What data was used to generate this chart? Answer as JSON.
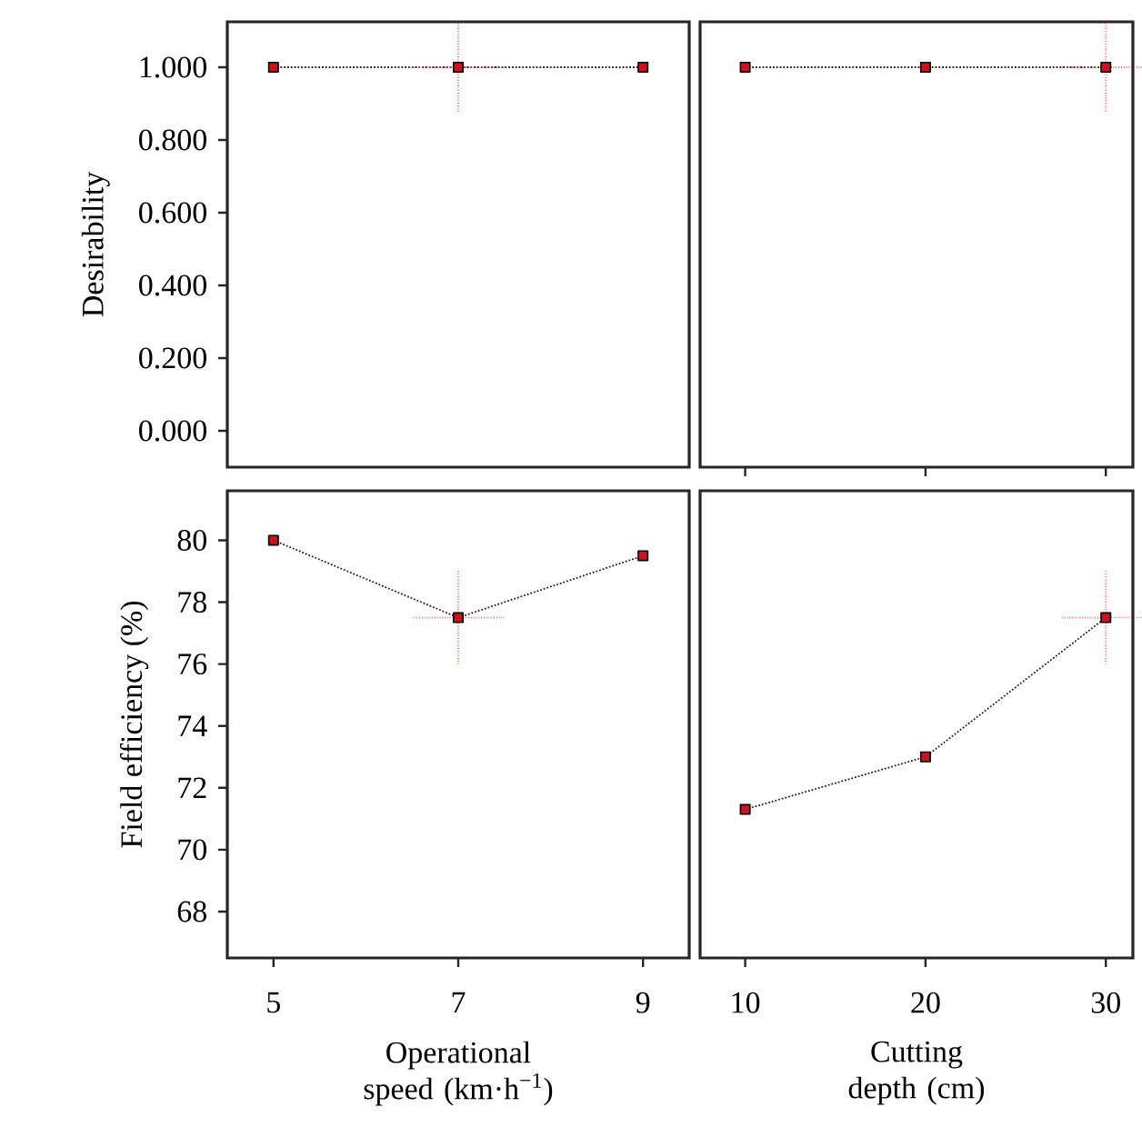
{
  "chart_data": [
    {
      "type": "line",
      "ylabel": "Desirability",
      "xlim": [
        4.5,
        9.5
      ],
      "ylim": [
        -0.1,
        1.125
      ],
      "yticks": [
        {
          "value": 0,
          "label": "0.000"
        },
        {
          "value": 0.2,
          "label": "0.200"
        },
        {
          "value": 0.4,
          "label": "0.400"
        },
        {
          "value": 0.6,
          "label": "0.600"
        },
        {
          "value": 0.8,
          "label": "0.800"
        },
        {
          "value": 1,
          "label": "1.000"
        }
      ],
      "tick_labels": "y",
      "marker": "square",
      "line_style": "dotted",
      "series": [
        {
          "color": "#222222",
          "x": [
            5,
            7,
            9
          ],
          "values": [
            1,
            1,
            1
          ],
          "errors": [
            null,
            0.125,
            null
          ],
          "xerrors": [
            null,
            0.5,
            null
          ]
        }
      ]
    },
    {
      "type": "line",
      "xlim": [
        7.5,
        31.5
      ],
      "xticks": [
        10,
        20,
        30
      ],
      "ylim": [
        -0.1,
        1.125
      ],
      "tick_labels": false,
      "marker": "square",
      "line_style": "dotted",
      "series": [
        {
          "color": "#222222",
          "x": [
            10,
            20,
            30
          ],
          "values": [
            1,
            1,
            1
          ],
          "errors": [
            null,
            null,
            0.125
          ],
          "xerrors": [
            null,
            null,
            2.5
          ]
        }
      ]
    },
    {
      "type": "line",
      "ylabel": "Field efficiency (%)",
      "xlabel": "Operational speed (km·h$^{−1}$)",
      "xlim": [
        4.5,
        9.5
      ],
      "xticks": [
        5,
        7,
        9
      ],
      "ylim": [
        66.5,
        81.6
      ],
      "yticks": [
        68,
        70,
        72,
        74,
        76,
        78,
        80
      ],
      "marker": "square",
      "line_style": "dotted",
      "series": [
        {
          "color": "#222222",
          "x": [
            5,
            7,
            9
          ],
          "values": [
            80,
            77.5,
            79.5
          ],
          "errors": [
            null,
            1.5,
            null
          ],
          "xerrors": [
            null,
            0.5,
            null
          ]
        }
      ]
    },
    {
      "type": "line",
      "xlabel": "Cutting depth (cm)",
      "xlim": [
        7.5,
        31.5
      ],
      "xticks": [
        10,
        20,
        30
      ],
      "ylim": [
        66.5,
        81.6
      ],
      "tick_labels": "x",
      "marker": "square",
      "line_style": "dotted",
      "series": [
        {
          "color": "#222222",
          "x": [
            10,
            20,
            30
          ],
          "values": [
            71.3,
            73,
            77.5
          ],
          "errors": [
            null,
            null,
            1.5
          ],
          "xerrors": [
            null,
            null,
            2.5
          ]
        }
      ]
    }
  ]
}
